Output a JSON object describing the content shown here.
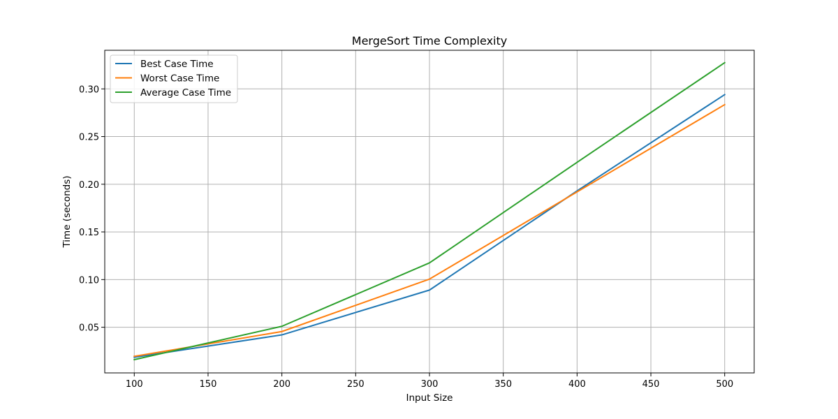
{
  "chart_data": {
    "type": "line",
    "title": "MergeSort Time Complexity",
    "xlabel": "Input Size",
    "ylabel": "Time (seconds)",
    "x": [
      100,
      200,
      300,
      400,
      500
    ],
    "xlim": [
      80,
      520
    ],
    "ylim": [
      0.0021,
      0.3405
    ],
    "xticks": [
      100,
      150,
      200,
      250,
      300,
      350,
      400,
      450,
      500
    ],
    "yticks": [
      0.05,
      0.1,
      0.15,
      0.2,
      0.25,
      0.3
    ],
    "xtick_labels": [
      "100",
      "150",
      "200",
      "250",
      "300",
      "350",
      "400",
      "450",
      "500"
    ],
    "ytick_labels": [
      "0.05",
      "0.10",
      "0.15",
      "0.20",
      "0.25",
      "0.30"
    ],
    "grid": true,
    "legend_position": "upper-left",
    "series": [
      {
        "name": "Best Case Time",
        "color": "#1f77b4",
        "values": [
          0.0185,
          0.042,
          0.089,
          0.193,
          0.294
        ]
      },
      {
        "name": "Worst Case Time",
        "color": "#ff7f0e",
        "values": [
          0.0195,
          0.0455,
          0.1005,
          0.192,
          0.2835
        ]
      },
      {
        "name": "Average Case Time",
        "color": "#2ca02c",
        "values": [
          0.016,
          0.051,
          0.1175,
          0.223,
          0.3275
        ]
      }
    ]
  }
}
